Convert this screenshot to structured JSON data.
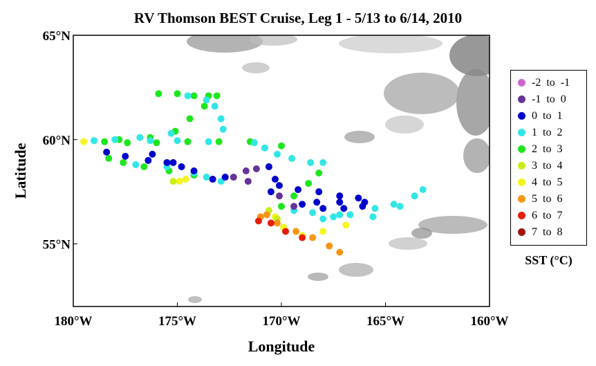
{
  "title": "RV Thomson BEST Cruise, Leg 1 - 5/13 to 6/14, 2010",
  "xlabel": "Longitude",
  "ylabel": "Latitude",
  "x_ticks": [
    "180°W",
    "175°W",
    "170°W",
    "165°W",
    "160°W"
  ],
  "y_ticks": [
    "65°N",
    "60°N",
    "55°N"
  ],
  "legend_title": "SST (°C)",
  "legend": [
    {
      "label": "-2  to  -1",
      "color": "#cc66cc"
    },
    {
      "label": "-1  to  0",
      "color": "#663399"
    },
    {
      "label": "0  to  1",
      "color": "#0000cc"
    },
    {
      "label": "1  to  2",
      "color": "#33e6e6"
    },
    {
      "label": "2  to  3",
      "color": "#1ee61e"
    },
    {
      "label": "3  to  4",
      "color": "#c8ee1e"
    },
    {
      "label": "4  to  5",
      "color": "#f5f51e"
    },
    {
      "label": "5  to  6",
      "color": "#f59614"
    },
    {
      "label": "6  to  7",
      "color": "#e61e0a"
    },
    {
      "label": "7  to  8",
      "color": "#a01414"
    }
  ],
  "chart_data": {
    "type": "scatter",
    "title": "RV Thomson BEST Cruise, Leg 1 - 5/13 to 6/14, 2010",
    "xlabel": "Longitude",
    "ylabel": "Latitude",
    "xlim": [
      -180,
      -160
    ],
    "ylim": [
      52,
      65
    ],
    "series": [
      {
        "name": "2  to  3",
        "lon": [
          -175.9,
          -175.0,
          -174.2,
          -173.5,
          -173.1,
          -173.7,
          -174.4,
          -175.1,
          -176.3,
          -177.8,
          -179.0,
          -178.5,
          -177.4,
          -176.0,
          -174.5,
          -173.0,
          -171.5,
          -170.0,
          -178.3,
          -177.6,
          -176.6,
          -175.4,
          -174.2,
          -170.0,
          -169.4,
          -168.7,
          -168.2
        ],
        "lat": [
          62.2,
          62.2,
          62.1,
          62.1,
          62.1,
          61.6,
          61.0,
          60.4,
          60.1,
          60.0,
          59.95,
          59.9,
          59.85,
          59.85,
          59.9,
          59.9,
          59.9,
          59.7,
          59.1,
          58.9,
          58.7,
          58.5,
          58.3,
          56.8,
          57.3,
          57.9,
          58.4
        ]
      },
      {
        "name": "1  to  2",
        "lon": [
          -174.5,
          -173.6,
          -173.2,
          -172.9,
          -172.8,
          -175.3,
          -176.8,
          -178.0,
          -179.0,
          -176.3,
          -175.0,
          -173.5,
          -171.3,
          -170.8,
          -170.2,
          -169.5,
          -168.6,
          -168.0,
          -177.0,
          -175.5,
          -174.2,
          -173.6,
          -172.9,
          -169.4,
          -168.5,
          -167.2,
          -165.6,
          -164.3,
          -163.6,
          -163.2,
          -164.6,
          -165.5,
          -166.7,
          -167.5,
          -168.0
        ],
        "lat": [
          62.1,
          61.9,
          61.6,
          61.0,
          60.5,
          60.3,
          60.1,
          60.0,
          59.95,
          59.95,
          59.95,
          59.9,
          59.85,
          59.6,
          59.3,
          59.1,
          58.9,
          58.9,
          58.8,
          58.7,
          58.4,
          58.2,
          58.0,
          56.6,
          56.5,
          56.4,
          56.3,
          56.8,
          57.3,
          57.6,
          56.9,
          56.7,
          56.4,
          56.3,
          56.2
        ]
      },
      {
        "name": "0  to  1",
        "lon": [
          -178.4,
          -177.5,
          -176.4,
          -175.5,
          -174.8,
          -176.2,
          -175.2,
          -174.2,
          -173.3,
          -172.7,
          -170.6,
          -170.3,
          -170.5,
          -170.1,
          -169.2,
          -168.2,
          -167.2,
          -166.3,
          -166.0,
          -167.2,
          -168.3,
          -169.0,
          -168.0,
          -167.0,
          -166.1
        ],
        "lat": [
          59.4,
          59.2,
          59.0,
          58.9,
          58.7,
          59.3,
          58.9,
          58.5,
          58.1,
          58.2,
          58.7,
          58.1,
          57.5,
          57.8,
          57.6,
          57.5,
          57.3,
          57.2,
          57.0,
          57.0,
          57.0,
          56.9,
          56.7,
          56.7,
          56.8
        ]
      },
      {
        "name": "-1  to  0",
        "lon": [
          -172.3,
          -171.7,
          -171.2,
          -171.6,
          -170.1,
          -169.4
        ],
        "lat": [
          58.2,
          58.5,
          58.6,
          58.0,
          57.3,
          56.8
        ]
      },
      {
        "name": "4  to  5",
        "lon": [
          -179.5,
          -174.9,
          -174.6,
          -170.3,
          -169.9,
          -169.0,
          -168.0,
          -166.9
        ],
        "lat": [
          59.9,
          58.0,
          58.1,
          56.3,
          55.8,
          55.4,
          55.6,
          55.9
        ]
      },
      {
        "name": "3  to  4",
        "lon": [
          -175.2,
          -170.6,
          -170.2
        ],
        "lat": [
          58.0,
          56.6,
          56.2
        ]
      },
      {
        "name": "5  to  6",
        "lon": [
          -171.0,
          -170.2,
          -169.3,
          -168.5,
          -167.7,
          -167.2,
          -170.7
        ],
        "lat": [
          56.3,
          56.0,
          55.6,
          55.3,
          54.9,
          54.6,
          56.4
        ]
      },
      {
        "name": "6  to  7",
        "lon": [
          -171.1,
          -170.5,
          -169.8,
          -169.0
        ],
        "lat": [
          56.1,
          56.0,
          55.6,
          55.3
        ]
      }
    ]
  }
}
